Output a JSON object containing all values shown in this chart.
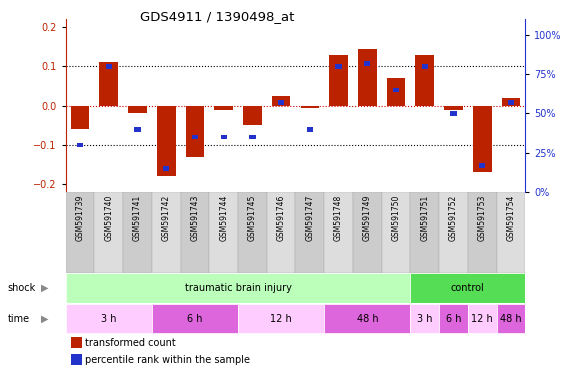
{
  "title": "GDS4911 / 1390498_at",
  "samples": [
    "GSM591739",
    "GSM591740",
    "GSM591741",
    "GSM591742",
    "GSM591743",
    "GSM591744",
    "GSM591745",
    "GSM591746",
    "GSM591747",
    "GSM591748",
    "GSM591749",
    "GSM591750",
    "GSM591751",
    "GSM591752",
    "GSM591753",
    "GSM591754"
  ],
  "red_values": [
    -0.06,
    0.11,
    -0.02,
    -0.18,
    -0.13,
    -0.01,
    -0.05,
    0.025,
    -0.005,
    0.13,
    0.145,
    0.07,
    0.13,
    -0.01,
    -0.17,
    0.02
  ],
  "blue_values_pct": [
    30,
    80,
    40,
    15,
    35,
    35,
    35,
    57,
    40,
    80,
    82,
    65,
    80,
    50,
    17,
    57
  ],
  "ylim_left": [
    -0.22,
    0.22
  ],
  "ylim_right": [
    0,
    110
  ],
  "yticks_left": [
    -0.2,
    -0.1,
    0.0,
    0.1,
    0.2
  ],
  "yticks_right": [
    0,
    25,
    50,
    75,
    100
  ],
  "red_color": "#bb2200",
  "blue_color": "#2233cc",
  "shock_groups": [
    {
      "label": "traumatic brain injury",
      "start": 0,
      "end": 11,
      "color": "#bbffbb"
    },
    {
      "label": "control",
      "start": 12,
      "end": 15,
      "color": "#55dd55"
    }
  ],
  "time_groups": [
    {
      "label": "3 h",
      "start": 0,
      "end": 2,
      "color": "#ffccff"
    },
    {
      "label": "6 h",
      "start": 3,
      "end": 5,
      "color": "#dd66dd"
    },
    {
      "label": "12 h",
      "start": 6,
      "end": 8,
      "color": "#ffccff"
    },
    {
      "label": "48 h",
      "start": 9,
      "end": 11,
      "color": "#dd66dd"
    },
    {
      "label": "3 h",
      "start": 12,
      "end": 12,
      "color": "#ffccff"
    },
    {
      "label": "6 h",
      "start": 13,
      "end": 13,
      "color": "#dd66dd"
    },
    {
      "label": "12 h",
      "start": 14,
      "end": 14,
      "color": "#ffccff"
    },
    {
      "label": "48 h",
      "start": 15,
      "end": 15,
      "color": "#dd66dd"
    }
  ],
  "shock_label": "shock",
  "time_label": "time",
  "legend_red": "transformed count",
  "legend_blue": "percentile rank within the sample",
  "bar_width": 0.65,
  "blue_square_size": 0.012
}
